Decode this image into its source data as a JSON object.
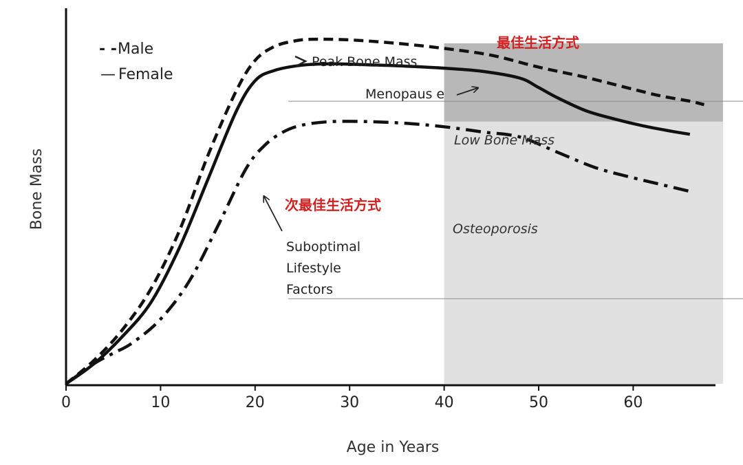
{
  "chart_data": {
    "type": "line",
    "title": "",
    "xlabel": "Age in Years",
    "ylabel": "Bone Mass",
    "xlim": [
      0,
      70
    ],
    "ylim": [
      0,
      100
    ],
    "x_ticks": [
      0,
      10,
      20,
      30,
      40,
      50,
      60
    ],
    "grid": false,
    "legend": {
      "placement": "top-left",
      "entries": [
        {
          "symbol": "- -",
          "label": "Male"
        },
        {
          "symbol": "—",
          "label": "Female"
        }
      ]
    },
    "series": [
      {
        "name": "Male",
        "style": "dashed",
        "x": [
          0,
          3,
          6,
          9,
          12,
          15,
          18,
          20,
          22,
          24,
          26,
          30,
          35,
          40,
          45,
          50,
          55,
          60,
          63,
          66,
          67.5
        ],
        "y": [
          0,
          7,
          16,
          28,
          45,
          67,
          86,
          95,
          99,
          100.6,
          101.2,
          101,
          100,
          98.5,
          96.5,
          93,
          90,
          86.5,
          84.5,
          83,
          82
        ]
      },
      {
        "name": "Female",
        "style": "solid",
        "x": [
          0,
          3,
          6,
          9,
          12,
          15,
          18,
          20,
          22,
          25,
          28,
          32,
          36,
          40,
          44,
          48,
          50,
          52,
          55,
          58,
          61,
          64,
          66
        ],
        "y": [
          0,
          6,
          14,
          24,
          40,
          60,
          80,
          89,
          92,
          93.6,
          94,
          93.7,
          93.3,
          92.7,
          91.8,
          89.8,
          87,
          84,
          80.2,
          77.8,
          75.8,
          74.2,
          73.3
        ]
      },
      {
        "name": "Suboptimal Lifestyle Factors",
        "style": "dash-dot",
        "x": [
          0,
          3,
          5,
          7,
          10,
          13,
          16,
          19,
          21,
          23,
          25,
          28,
          32,
          36,
          40,
          44,
          48,
          52,
          56,
          60,
          63,
          66
        ],
        "y": [
          0,
          6,
          9,
          12,
          19,
          30,
          46,
          63,
          70,
          74,
          76,
          77,
          77,
          76.5,
          75.5,
          74,
          72.5,
          68,
          63.5,
          60.5,
          58.5,
          56.5
        ]
      }
    ],
    "regions": [
      {
        "label": "Low Bone Mass",
        "x": [
          40,
          69.5
        ],
        "y": [
          77,
          100
        ],
        "color": "#b8b8b8"
      },
      {
        "label": "Osteoporosis",
        "x": [
          40,
          69.5
        ],
        "y": [
          0,
          77
        ],
        "color": "#e1e1e1"
      }
    ],
    "reference_lines": [
      {
        "y": 83,
        "x_start": 23.5,
        "x_end": 72
      },
      {
        "y": 25,
        "x_start": 23.5,
        "x_end": 72
      }
    ],
    "annotations": [
      {
        "text": "Peak Bone Mass",
        "x": 26,
        "y": 101
      },
      {
        "text": "Menopaus e",
        "x": 43,
        "y": 93
      },
      {
        "text": "Suboptimal\nLifestyle\nFactors",
        "x": 22,
        "y": 65
      }
    ],
    "cn_labels": [
      {
        "text": "最佳生活方式",
        "color": "#d22020"
      },
      {
        "text": "次最佳生活方式",
        "color": "#d22020"
      }
    ]
  }
}
